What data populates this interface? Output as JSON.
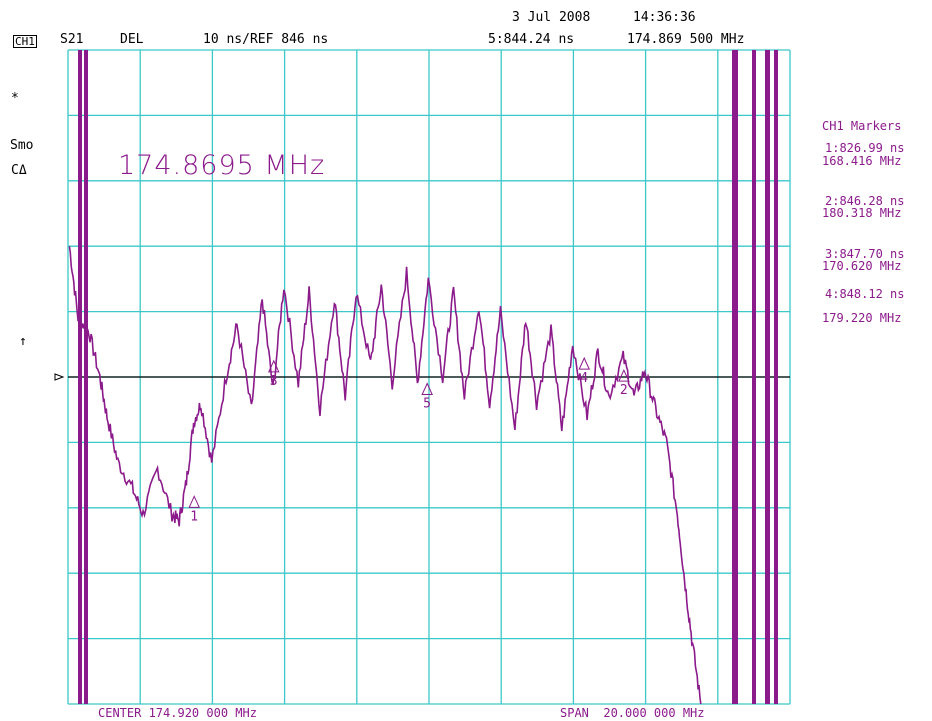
{
  "header": {
    "date": "3 Jul 2008",
    "time": "14:36:36",
    "channel": "CH1",
    "param": "S21",
    "format": "DEL",
    "scale": "10 ns/REF 846 ns",
    "active_marker": "5:844.24 ns",
    "active_marker_freq": "174.869 500 MHz"
  },
  "left_annotations": {
    "star": "*",
    "smo": "Smo",
    "cdelta": "CΔ",
    "ref_arrow": "↑"
  },
  "marker_readout": "174.8695 MHz",
  "markers_panel": {
    "title": "CH1 Markers",
    "items": [
      {
        "label": "1:",
        "time": "826.99 ns",
        "freq": "168.416 MHz"
      },
      {
        "label": "2:",
        "time": "846.28 ns",
        "freq": "180.318 MHz"
      },
      {
        "label": "3:",
        "time": "847.70 ns",
        "freq": "170.620 MHz"
      },
      {
        "label": "4:",
        "time": "848.12 ns",
        "freq": "179.220 MHz"
      }
    ]
  },
  "footer": {
    "center": "CENTER 174.920 000 MHz",
    "span": "SPAN  20.000 000 MHz"
  },
  "colors": {
    "grid": "#3cc8c8",
    "trace": "#8b1a8b",
    "text": "#000000"
  },
  "chart_data": {
    "type": "line",
    "title": "",
    "xlabel": "",
    "ylabel": "",
    "x_range_mhz": [
      164.92,
      184.92
    ],
    "ylim_ns": [
      796,
      896
    ],
    "reference_ns": 846,
    "divisions": {
      "x": 10,
      "y": 10
    },
    "grid": true,
    "series": [
      {
        "name": "",
        "x": [
          164.96,
          165.2,
          165.5,
          165.8,
          166.0,
          166.3,
          166.7,
          167.0,
          167.4,
          167.8,
          168.0,
          168.2,
          168.4,
          168.6,
          168.9,
          169.3,
          169.6,
          170.0,
          170.3,
          170.6,
          170.9,
          171.3,
          171.6,
          171.9,
          172.3,
          172.6,
          172.9,
          173.3,
          173.6,
          173.9,
          174.3,
          174.6,
          174.9,
          175.3,
          175.6,
          175.9,
          176.3,
          176.6,
          176.9,
          177.3,
          177.6,
          177.9,
          178.3,
          178.6,
          178.9,
          179.3,
          179.6,
          179.9,
          180.3,
          180.6,
          180.9,
          181.2,
          181.5,
          181.8,
          182.0,
          182.2,
          182.45
        ],
        "y": [
          866,
          855,
          853,
          846,
          840,
          833,
          829,
          825,
          832,
          825,
          824,
          830,
          839,
          842,
          833,
          846,
          854,
          841,
          858,
          844,
          860,
          845,
          859,
          841,
          858,
          843,
          859,
          848,
          860,
          845,
          862,
          845,
          861,
          846,
          859,
          843,
          857,
          842,
          856,
          838,
          855,
          842,
          853,
          838,
          851,
          840,
          850,
          843,
          849,
          843,
          847,
          841,
          836,
          825,
          815,
          806,
          796
        ]
      }
    ],
    "markers": [
      {
        "id": "1",
        "x": 168.416,
        "y": 826.99
      },
      {
        "id": "2",
        "x": 180.318,
        "y": 846.28
      },
      {
        "id": "3",
        "x": 170.62,
        "y": 847.7
      },
      {
        "id": "4",
        "x": 179.22,
        "y": 848.12
      },
      {
        "id": "5",
        "x": 174.8695,
        "y": 844.24
      }
    ]
  }
}
